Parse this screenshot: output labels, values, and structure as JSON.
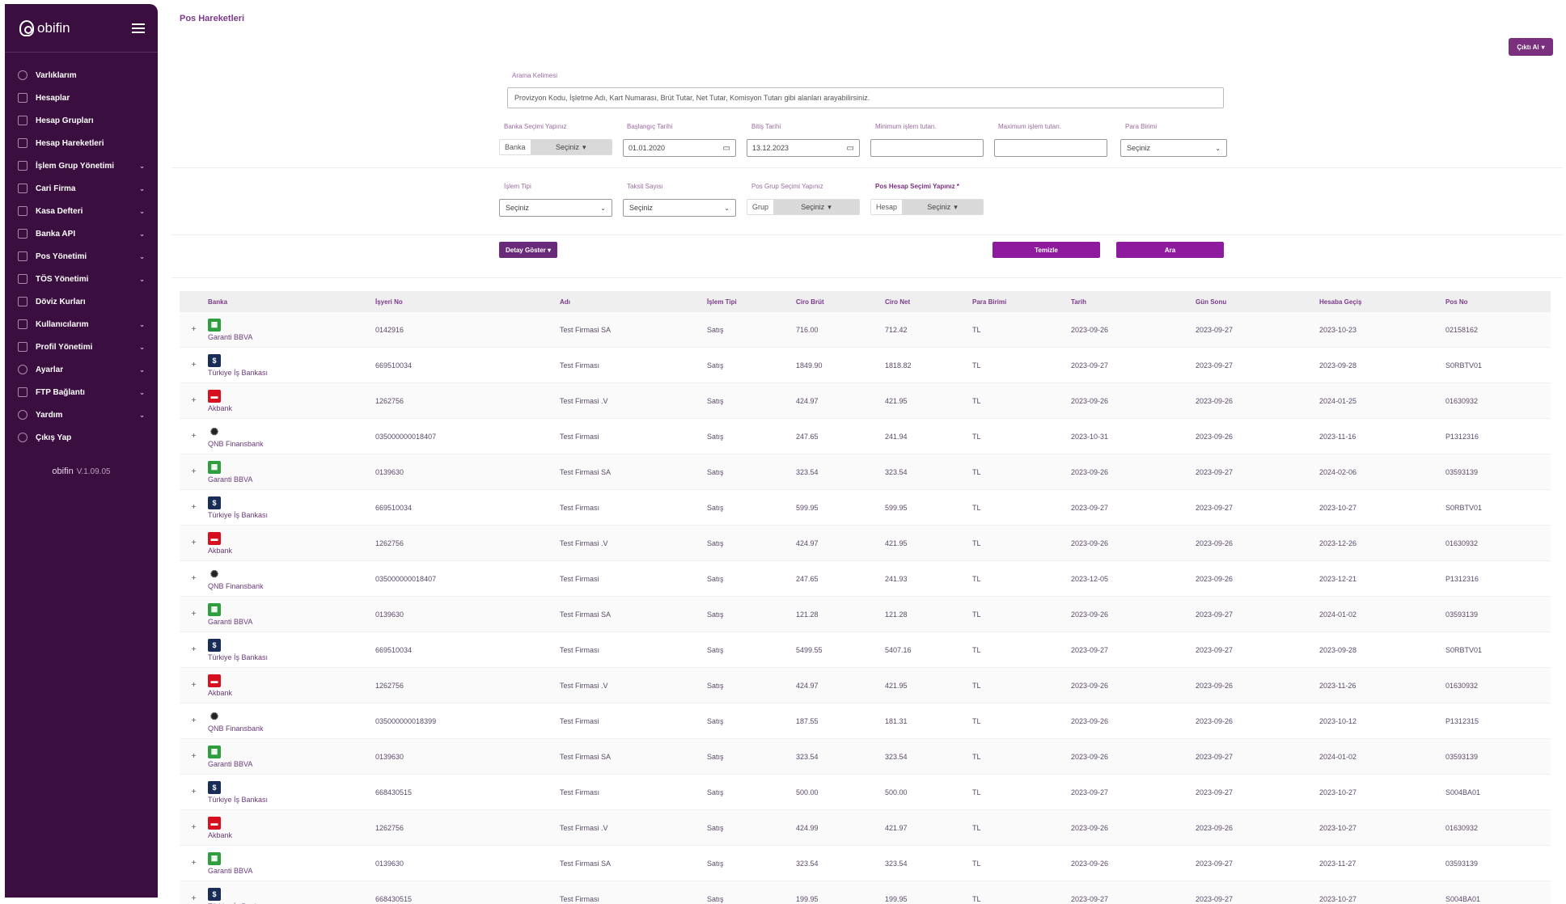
{
  "app": {
    "logo_text": "obifin",
    "version": "V.1.09.05"
  },
  "sidebar": {
    "items": [
      {
        "label": "Varlıklarım",
        "expandable": false
      },
      {
        "label": "Hesaplar",
        "expandable": false
      },
      {
        "label": "Hesap Grupları",
        "expandable": false
      },
      {
        "label": "Hesap Hareketleri",
        "expandable": false
      },
      {
        "label": "İşlem Grup Yönetimi",
        "expandable": true
      },
      {
        "label": "Cari Firma",
        "expandable": true
      },
      {
        "label": "Kasa Defteri",
        "expandable": true
      },
      {
        "label": "Banka API",
        "expandable": true
      },
      {
        "label": "Pos Yönetimi",
        "expandable": true
      },
      {
        "label": "TÖS Yönetimi",
        "expandable": true
      },
      {
        "label": "Döviz Kurları",
        "expandable": false
      },
      {
        "label": "Kullanıcılarım",
        "expandable": true
      },
      {
        "label": "Profil Yönetimi",
        "expandable": true
      },
      {
        "label": "Ayarlar",
        "expandable": true
      },
      {
        "label": "FTP Bağlantı",
        "expandable": true
      },
      {
        "label": "Yardım",
        "expandable": true
      },
      {
        "label": "Çıkış Yap",
        "expandable": false
      }
    ]
  },
  "page": {
    "title": "Pos Hareketleri",
    "export_label": "Çıktı Al"
  },
  "filters": {
    "search_label": "Arama Kelimesi",
    "search_placeholder": "Provizyon Kodu, İşletme Adı, Kart Numarası, Brüt Tutar, Net Tutar, Komisyon Tutarı gibi alanları arayabilirsiniz.",
    "bank_select_label": "Banka Seçimi Yapınız",
    "bank_prefix": "Banka",
    "select_placeholder": "Seçiniz",
    "start_date_label": "Başlangıç Tarihi",
    "start_date": "01.01.2020",
    "end_date_label": "Bitiş Tarihi",
    "end_date": "13.12.2023",
    "min_amount_label": "Minimum işlem tutarı.",
    "max_amount_label": "Maximum işlem tutarı.",
    "currency_label": "Para Birimi",
    "txn_type_label": "İşlem Tipi",
    "installment_label": "Taksit Sayısı",
    "pos_group_label": "Pos Grup Seçimi Yapınız",
    "group_prefix": "Grup",
    "pos_account_label": "Pos Hesap Seçimi Yapınız *",
    "account_prefix": "Hesap"
  },
  "actions": {
    "detail_label": "Detay Göster",
    "clear_label": "Temizle",
    "search_label": "Ara"
  },
  "table": {
    "columns": [
      "Banka",
      "İşyeri No",
      "Adı",
      "İşlem Tipi",
      "Ciro Brüt",
      "Ciro Net",
      "Para Birimi",
      "Tarih",
      "Gün Sonu",
      "Hesaba Geçiş",
      "Pos No"
    ],
    "rows": [
      [
        "Garanti BBVA",
        "0142916",
        "Test Firmasi SA",
        "Satış",
        "716.00",
        "712.42",
        "TL",
        "2023-09-26",
        "2023-09-27",
        "2023-10-23",
        "02158162"
      ],
      [
        "Türkiye İş Bankası",
        "669510034",
        "Test Firması",
        "Satış",
        "1849.90",
        "1818.82",
        "TL",
        "2023-09-27",
        "2023-09-27",
        "2023-09-28",
        "S0RBTV01"
      ],
      [
        "Akbank",
        "1262756",
        "Test Firmasi .V",
        "Satış",
        "424.97",
        "421.95",
        "TL",
        "2023-09-26",
        "2023-09-26",
        "2024-01-25",
        "01630932"
      ],
      [
        "QNB Finansbank",
        "035000000018407",
        "Test Firmasi",
        "Satış",
        "247.65",
        "241.94",
        "TL",
        "2023-10-31",
        "2023-09-26",
        "2023-11-16",
        "P1312316"
      ],
      [
        "Garanti BBVA",
        "0139630",
        "Test Firmasi SA",
        "Satış",
        "323.54",
        "323.54",
        "TL",
        "2023-09-26",
        "2023-09-27",
        "2024-02-06",
        "03593139"
      ],
      [
        "Türkiye İş Bankası",
        "669510034",
        "Test Firması",
        "Satış",
        "599.95",
        "599.95",
        "TL",
        "2023-09-27",
        "2023-09-27",
        "2023-10-27",
        "S0RBTV01"
      ],
      [
        "Akbank",
        "1262756",
        "Test Firmasi .V",
        "Satış",
        "424.97",
        "421.95",
        "TL",
        "2023-09-26",
        "2023-09-26",
        "2023-12-26",
        "01630932"
      ],
      [
        "QNB Finansbank",
        "035000000018407",
        "Test Firmasi",
        "Satış",
        "247.65",
        "241.93",
        "TL",
        "2023-12-05",
        "2023-09-26",
        "2023-12-21",
        "P1312316"
      ],
      [
        "Garanti BBVA",
        "0139630",
        "Test Firmasi SA",
        "Satış",
        "121.28",
        "121.28",
        "TL",
        "2023-09-26",
        "2023-09-27",
        "2024-01-02",
        "03593139"
      ],
      [
        "Türkiye İş Bankası",
        "669510034",
        "Test Firması",
        "Satış",
        "5499.55",
        "5407.16",
        "TL",
        "2023-09-27",
        "2023-09-27",
        "2023-09-28",
        "S0RBTV01"
      ],
      [
        "Akbank",
        "1262756",
        "Test Firmasi .V",
        "Satış",
        "424.97",
        "421.95",
        "TL",
        "2023-09-26",
        "2023-09-26",
        "2023-11-26",
        "01630932"
      ],
      [
        "QNB Finansbank",
        "035000000018399",
        "Test Firmasi",
        "Satış",
        "187.55",
        "181.31",
        "TL",
        "2023-09-26",
        "2023-09-26",
        "2023-10-12",
        "P1312315"
      ],
      [
        "Garanti BBVA",
        "0139630",
        "Test Firmasi SA",
        "Satış",
        "323.54",
        "323.54",
        "TL",
        "2023-09-26",
        "2023-09-27",
        "2024-01-02",
        "03593139"
      ],
      [
        "Türkiye İş Bankası",
        "668430515",
        "Test Firması",
        "Satış",
        "500.00",
        "500.00",
        "TL",
        "2023-09-27",
        "2023-09-27",
        "2023-10-27",
        "S004BA01"
      ],
      [
        "Akbank",
        "1262756",
        "Test Firmasi .V",
        "Satış",
        "424.99",
        "421.97",
        "TL",
        "2023-09-26",
        "2023-09-26",
        "2023-10-27",
        "01630932"
      ],
      [
        "Garanti BBVA",
        "0139630",
        "Test Firmasi SA",
        "Satış",
        "323.54",
        "323.54",
        "TL",
        "2023-09-26",
        "2023-09-27",
        "2023-11-27",
        "03593139"
      ],
      [
        "Türkiye İş Bankası",
        "668430515",
        "Test Firması",
        "Satış",
        "199.95",
        "199.95",
        "TL",
        "2023-09-27",
        "2023-09-27",
        "2023-10-27",
        "S004BA01"
      ]
    ]
  },
  "colors": {
    "sidebar": "#3a0f3f",
    "accent": "#8e1a9e"
  }
}
